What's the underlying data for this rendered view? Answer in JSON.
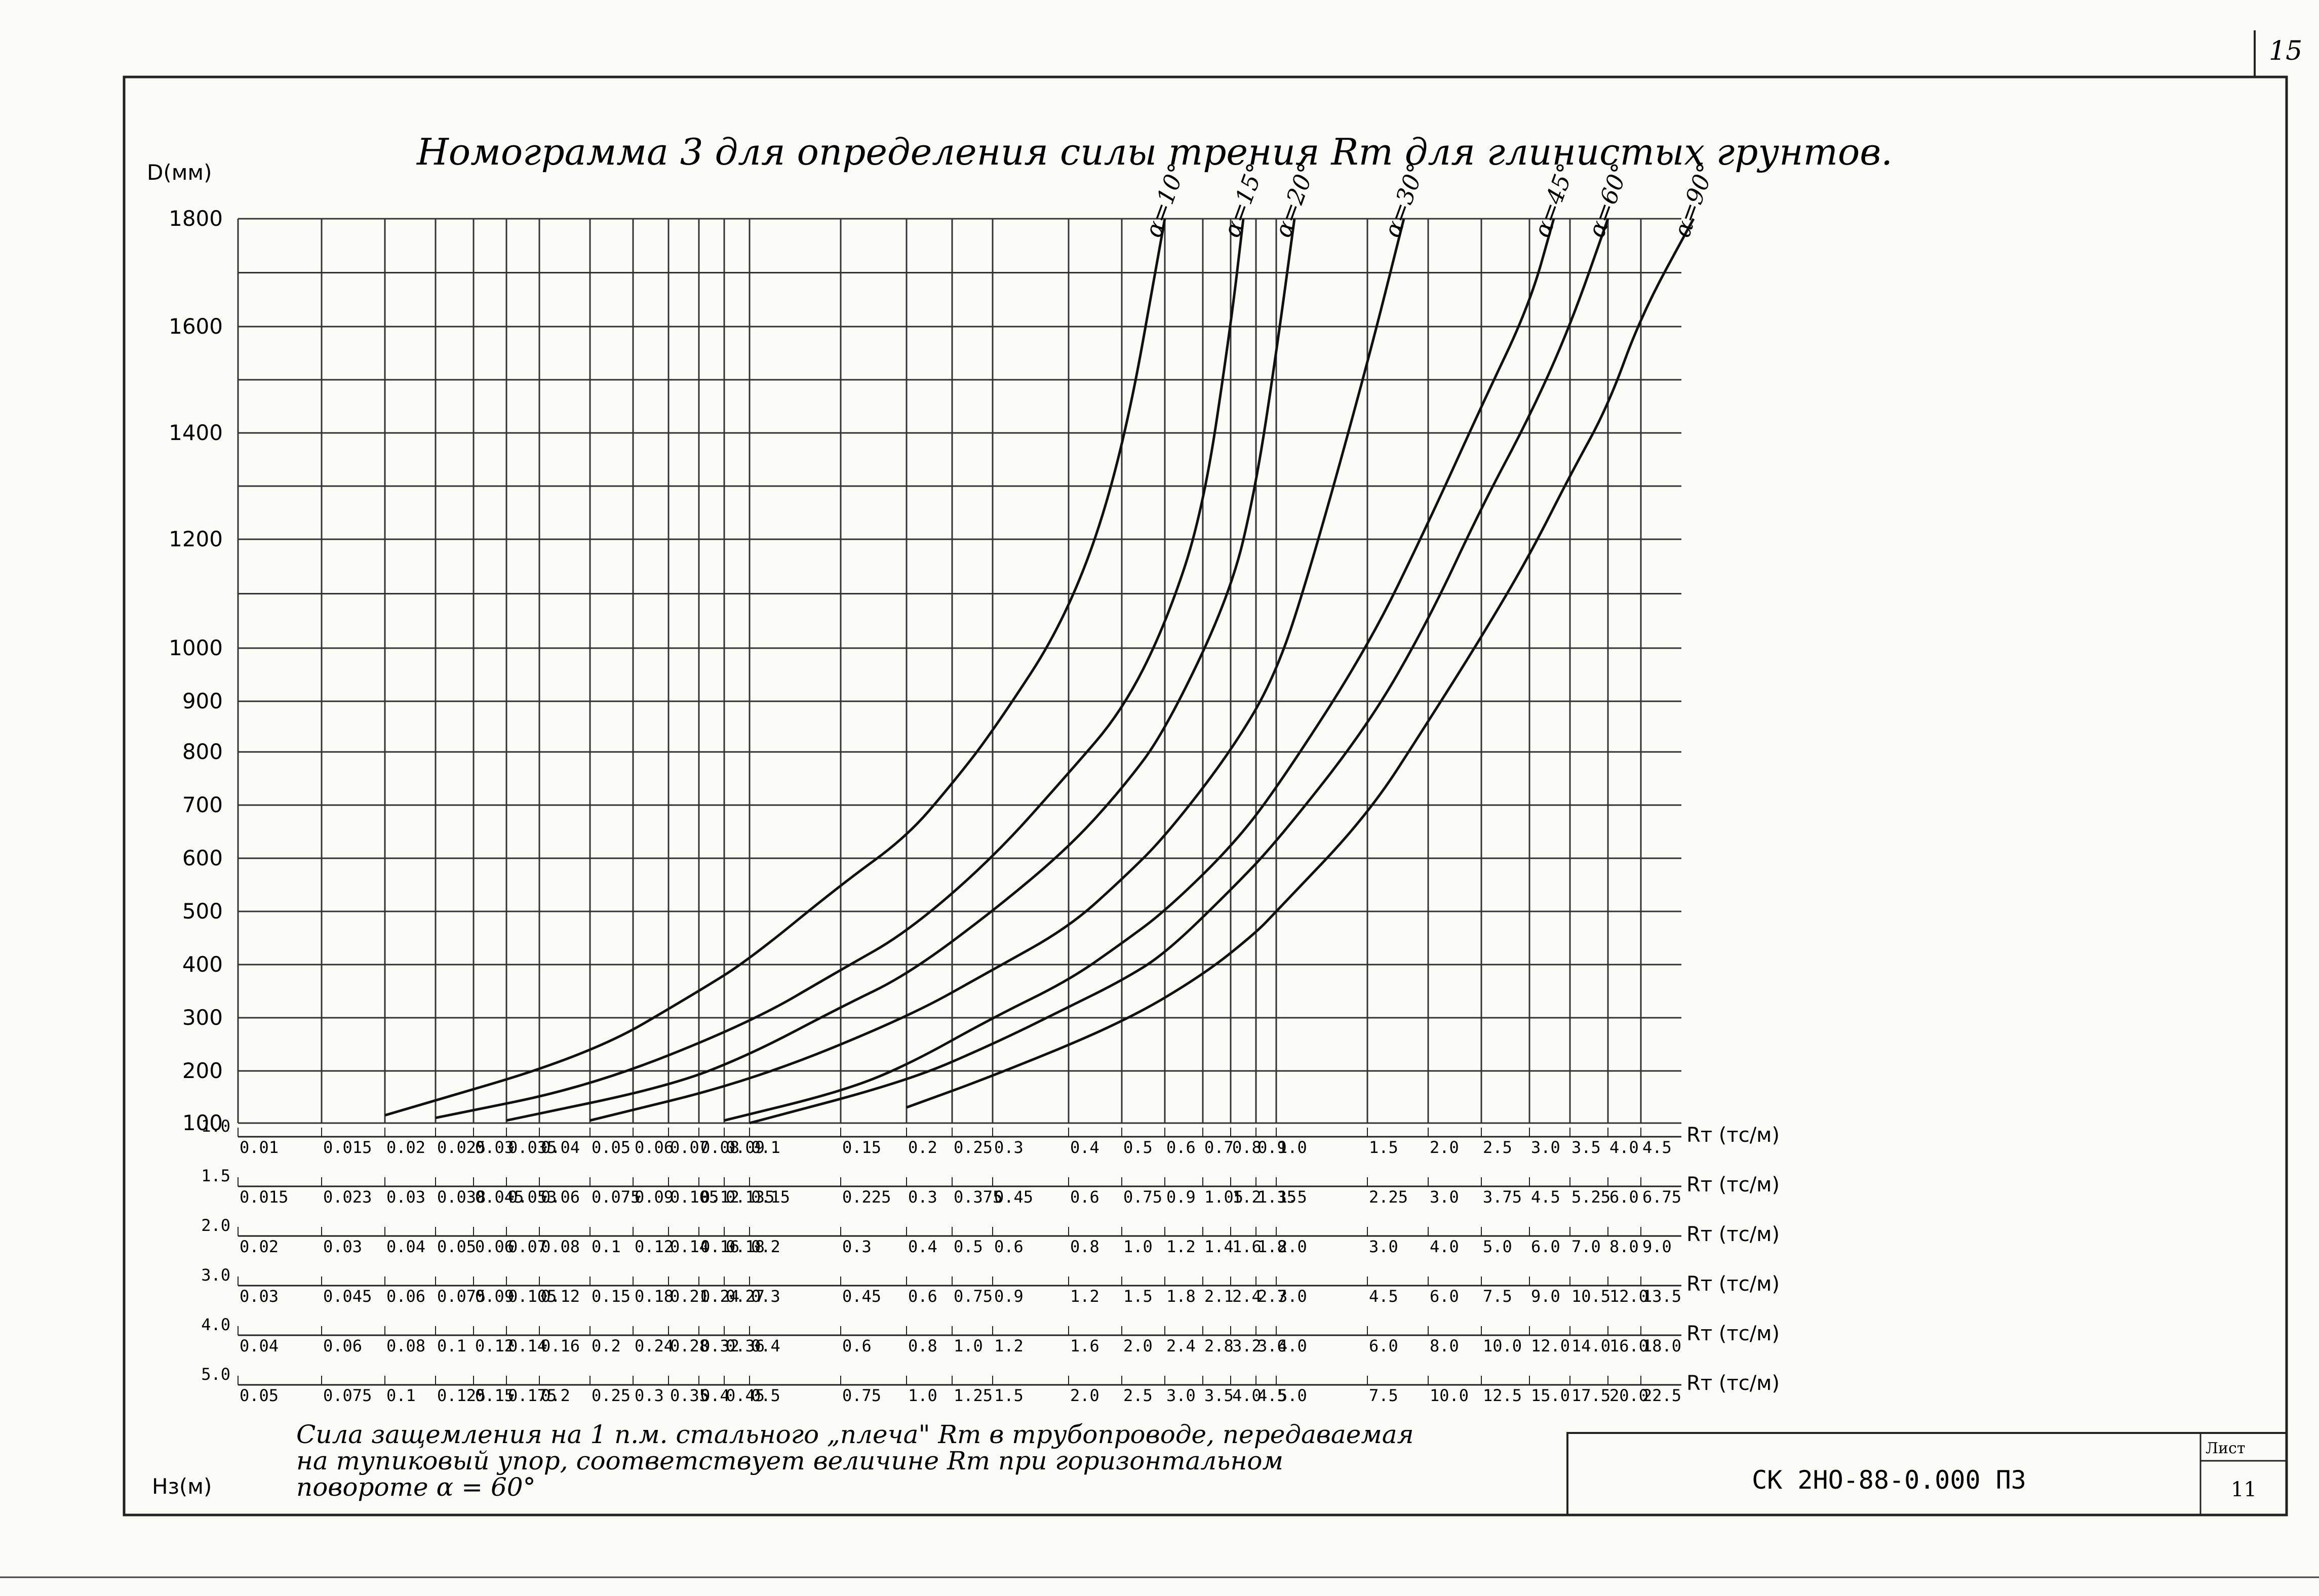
{
  "sheet": {
    "page_number": "15",
    "stamp_code": "СК 2НО-88-0.000 ПЗ",
    "stamp_sheet_label": "Лист",
    "stamp_sheet_number": "11"
  },
  "note": {
    "line1": "Сила защемления на 1 п.м. стального „плеча\" Rт в трубопроводе, передаваемая",
    "line2": "на тупиковый упор, соответствует величине Rт при горизонтальном",
    "line3": "повороте α = 60°"
  },
  "chart_data": {
    "type": "line",
    "title": "Номограмма 3 для определения силы трения Rт для глинистых грунтов.",
    "ylabel": "D(мм)",
    "hlabel": "Hз(м)",
    "rt_label": "Rт (тс/м)",
    "ylim": [
      100,
      1800
    ],
    "y_tick_labels": [
      "1800",
      "1600",
      "1400",
      "1200",
      "1000",
      "900",
      "800",
      "700",
      "600",
      "500",
      "400",
      "300",
      "200",
      "100"
    ],
    "y_ticks": [
      1800,
      1600,
      1400,
      1200,
      1000,
      900,
      800,
      700,
      600,
      500,
      400,
      300,
      200,
      100
    ],
    "y_grid": [
      1800,
      1700,
      1600,
      1500,
      1400,
      1300,
      1200,
      1100,
      1000,
      900,
      800,
      700,
      600,
      500,
      400,
      300,
      200,
      100
    ],
    "h_scales": [
      {
        "h": "1.0",
        "ticks": [
          "0.01",
          "0.015",
          "0.02",
          "0.025",
          "0.03",
          "0.035",
          "0.04",
          "0.05",
          "0.06",
          "0.07",
          "0.08",
          "0.09",
          "0.1",
          "0.15",
          "0.2",
          "0.25",
          "0.3",
          "0.4",
          "0.5",
          "0.6",
          "0.7",
          "0.8",
          "0.9",
          "1.0",
          "1.5",
          "2.0",
          "2.5",
          "3.0",
          "3.5",
          "4.0",
          "4.5"
        ]
      },
      {
        "h": "1.5",
        "ticks": [
          "0.015",
          "0.023",
          "0.03",
          "0.038",
          "0.045",
          "0.053",
          "0.06",
          "0.075",
          "0.09",
          "0.105",
          "0.12",
          "0.135",
          "0.15",
          "0.225",
          "0.3",
          "0.375",
          "0.45",
          "0.6",
          "0.75",
          "0.9",
          "1.05",
          "1.2",
          "1.35",
          "1.5",
          "2.25",
          "3.0",
          "3.75",
          "4.5",
          "5.25",
          "6.0",
          "6.75"
        ]
      },
      {
        "h": "2.0",
        "ticks": [
          "0.02",
          "0.03",
          "0.04",
          "0.05",
          "0.06",
          "0.07",
          "0.08",
          "0.1",
          "0.12",
          "0.14",
          "0.16",
          "0.18",
          "0.2",
          "0.3",
          "0.4",
          "0.5",
          "0.6",
          "0.8",
          "1.0",
          "1.2",
          "1.4",
          "1.6",
          "1.8",
          "2.0",
          "3.0",
          "4.0",
          "5.0",
          "6.0",
          "7.0",
          "8.0",
          "9.0"
        ]
      },
      {
        "h": "3.0",
        "ticks": [
          "0.03",
          "0.045",
          "0.06",
          "0.075",
          "0.09",
          "0.105",
          "0.12",
          "0.15",
          "0.18",
          "0.21",
          "0.24",
          "0.27",
          "0.3",
          "0.45",
          "0.6",
          "0.75",
          "0.9",
          "1.2",
          "1.5",
          "1.8",
          "2.1",
          "2.4",
          "2.7",
          "3.0",
          "4.5",
          "6.0",
          "7.5",
          "9.0",
          "10.5",
          "12.0",
          "13.5"
        ]
      },
      {
        "h": "4.0",
        "ticks": [
          "0.04",
          "0.06",
          "0.08",
          "0.1",
          "0.12",
          "0.14",
          "0.16",
          "0.2",
          "0.24",
          "0.28",
          "0.32",
          "0.36",
          "0.4",
          "0.6",
          "0.8",
          "1.0",
          "1.2",
          "1.6",
          "2.0",
          "2.4",
          "2.8",
          "3.2",
          "3.6",
          "4.0",
          "6.0",
          "8.0",
          "10.0",
          "12.0",
          "14.0",
          "16.0",
          "18.0"
        ]
      },
      {
        "h": "5.0",
        "ticks": [
          "0.05",
          "0.075",
          "0.1",
          "0.125",
          "0.15",
          "0.175",
          "0.2",
          "0.25",
          "0.3",
          "0.35",
          "0.4",
          "0.45",
          "0.5",
          "0.75",
          "1.0",
          "1.25",
          "1.5",
          "2.0",
          "2.5",
          "3.0",
          "3.5",
          "4.0",
          "4.5",
          "5.0",
          "7.5",
          "10.0",
          "12.5",
          "15.0",
          "17.5",
          "20.0",
          "22.5"
        ]
      }
    ],
    "rt_grid_base": [
      0.01,
      0.015,
      0.02,
      0.025,
      0.03,
      0.035,
      0.04,
      0.05,
      0.06,
      0.07,
      0.08,
      0.09,
      0.1,
      0.15,
      0.2,
      0.25,
      0.3,
      0.4,
      0.5,
      0.6,
      0.7,
      0.8,
      0.9,
      1.0,
      1.5,
      2.0,
      2.5,
      3.0,
      3.5,
      4.0,
      4.5
    ],
    "series": [
      {
        "name": "α=10°",
        "points": [
          [
            0.02,
            115
          ],
          [
            0.05,
            230
          ],
          [
            0.08,
            350
          ],
          [
            0.1,
            410
          ],
          [
            0.15,
            550
          ],
          [
            0.2,
            640
          ],
          [
            0.25,
            740
          ],
          [
            0.3,
            840
          ],
          [
            0.4,
            1060
          ],
          [
            0.5,
            1350
          ],
          [
            0.6,
            1800
          ]
        ]
      },
      {
        "name": "α=15°",
        "points": [
          [
            0.025,
            110
          ],
          [
            0.05,
            170
          ],
          [
            0.1,
            290
          ],
          [
            0.15,
            390
          ],
          [
            0.2,
            460
          ],
          [
            0.3,
            600
          ],
          [
            0.4,
            760
          ],
          [
            0.5,
            880
          ],
          [
            0.6,
            1040
          ],
          [
            0.7,
            1250
          ],
          [
            0.8,
            1600
          ],
          [
            0.85,
            1800
          ]
        ]
      },
      {
        "name": "α=20°",
        "points": [
          [
            0.035,
            105
          ],
          [
            0.07,
            170
          ],
          [
            0.1,
            230
          ],
          [
            0.15,
            320
          ],
          [
            0.2,
            380
          ],
          [
            0.3,
            500
          ],
          [
            0.4,
            620
          ],
          [
            0.5,
            730
          ],
          [
            0.6,
            840
          ],
          [
            0.8,
            1100
          ],
          [
            0.9,
            1300
          ],
          [
            1.0,
            1550
          ],
          [
            1.1,
            1800
          ]
        ]
      },
      {
        "name": "α=30°",
        "points": [
          [
            0.05,
            105
          ],
          [
            0.1,
            180
          ],
          [
            0.2,
            300
          ],
          [
            0.3,
            390
          ],
          [
            0.4,
            470
          ],
          [
            0.5,
            560
          ],
          [
            0.6,
            640
          ],
          [
            0.8,
            800
          ],
          [
            1.0,
            950
          ],
          [
            1.2,
            1160
          ],
          [
            1.5,
            1530
          ],
          [
            1.8,
            1800
          ]
        ]
      },
      {
        "name": "α=45°",
        "points": [
          [
            0.09,
            105
          ],
          [
            0.15,
            160
          ],
          [
            0.2,
            210
          ],
          [
            0.3,
            300
          ],
          [
            0.4,
            370
          ],
          [
            0.5,
            440
          ],
          [
            0.6,
            500
          ],
          [
            0.8,
            620
          ],
          [
            1.0,
            730
          ],
          [
            1.5,
            1000
          ],
          [
            2.0,
            1230
          ],
          [
            2.5,
            1450
          ],
          [
            3.0,
            1640
          ],
          [
            3.3,
            1800
          ]
        ]
      },
      {
        "name": "α=60°",
        "points": [
          [
            0.1,
            100
          ],
          [
            0.2,
            180
          ],
          [
            0.3,
            250
          ],
          [
            0.4,
            320
          ],
          [
            0.5,
            370
          ],
          [
            0.6,
            420
          ],
          [
            0.8,
            540
          ],
          [
            1.0,
            630
          ],
          [
            1.5,
            850
          ],
          [
            2.0,
            1050
          ],
          [
            2.5,
            1260
          ],
          [
            3.0,
            1430
          ],
          [
            3.5,
            1600
          ],
          [
            4.0,
            1800
          ]
        ]
      },
      {
        "name": "α=90°",
        "points": [
          [
            0.2,
            130
          ],
          [
            0.3,
            190
          ],
          [
            0.5,
            290
          ],
          [
            0.7,
            380
          ],
          [
            0.9,
            460
          ],
          [
            1.0,
            500
          ],
          [
            1.5,
            680
          ],
          [
            2.0,
            860
          ],
          [
            2.5,
            1020
          ],
          [
            3.0,
            1170
          ],
          [
            3.5,
            1320
          ],
          [
            4.0,
            1450
          ],
          [
            4.5,
            1620
          ],
          [
            5.3,
            1800
          ]
        ]
      }
    ]
  }
}
